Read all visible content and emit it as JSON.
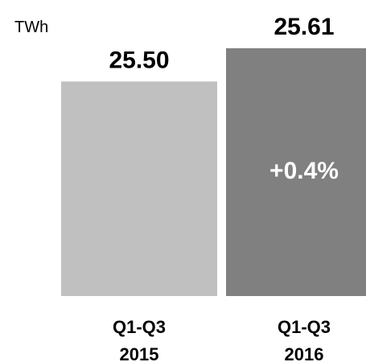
{
  "chart_data": {
    "type": "bar",
    "unit": "TWh",
    "categories": [
      [
        "Q1-Q3",
        "2015"
      ],
      [
        "Q1-Q3",
        "2016"
      ]
    ],
    "values": [
      25.5,
      25.61
    ],
    "value_labels": [
      "25.50",
      "25.61"
    ],
    "bar_colors": [
      "#c0c0c0",
      "#808080"
    ],
    "change_label": "+0.4%",
    "change_label_color": "#ffffff",
    "ylim": [
      24.79,
      25.61
    ],
    "grid": false,
    "legend": "none"
  }
}
